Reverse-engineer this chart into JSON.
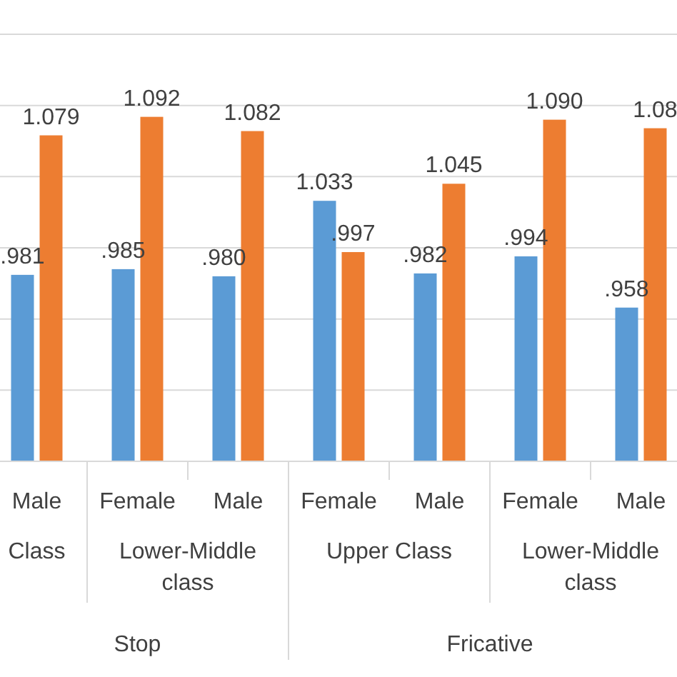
{
  "chart_data": {
    "type": "bar",
    "categories": [
      "Male",
      "Female",
      "Male",
      "Female",
      "Male",
      "Female",
      "Male"
    ],
    "series": [
      {
        "color": "#5b9bd5",
        "values": [
          0.981,
          0.985,
          0.98,
          1.033,
          0.982,
          0.994,
          0.958
        ],
        "value_labels": [
          ".981",
          ".985",
          ".980",
          "1.033",
          ".982",
          ".994",
          ".958"
        ]
      },
      {
        "color": "#ed7d31",
        "values": [
          1.079,
          1.092,
          1.082,
          0.997,
          1.045,
          1.09,
          1.084
        ],
        "value_labels": [
          "1.079",
          "1.092",
          "1.082",
          ".997",
          "1.045",
          "1.090",
          "1.08"
        ]
      }
    ],
    "ylim": [
      0.85,
      1.15
    ],
    "yticks": [
      {
        "value": 0.85,
        "label": null
      },
      {
        "value": 0.9,
        "label": null
      },
      {
        "value": 0.95,
        "label": null
      },
      {
        "value": 1.0,
        "label": null
      },
      {
        "value": 1.05,
        "label": null
      },
      {
        "value": 1.1,
        "label": null
      },
      {
        "value": 1.15,
        "label": null
      }
    ],
    "tick_labels": "x",
    "grid": "y",
    "annotations": [
      "Class",
      "Lower-Middle class",
      "Upper Class",
      "Lower-Middle class",
      "Stop",
      "Fricative"
    ]
  }
}
